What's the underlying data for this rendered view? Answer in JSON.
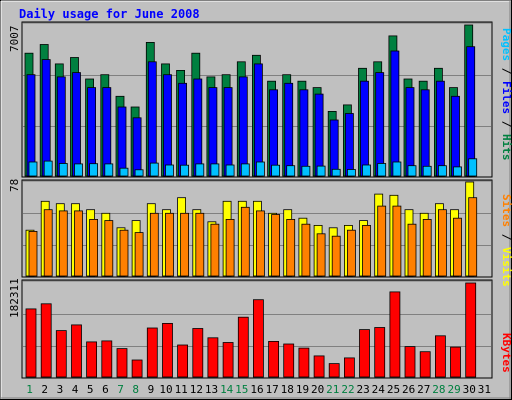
{
  "title": "Daily usage for June 2008",
  "colors": {
    "title": "#0000ff",
    "hits": "#008040",
    "files": "#0000ff",
    "pages": "#00c0ff",
    "visits": "#ffff00",
    "sites": "#ff8000",
    "kbytes": "#ff0000",
    "panel_bg": "#c0c0c0",
    "day_weekday": "#000000",
    "day_weekend": "#008040",
    "separator": "#000000"
  },
  "panels": {
    "top": {
      "max_label": "7007",
      "legend": [
        "Pages",
        "/",
        "Files",
        "/",
        "Hits"
      ]
    },
    "middle": {
      "max_label": "78",
      "legend": [
        "Sites",
        "/",
        "Visits"
      ]
    },
    "bottom": {
      "max_label": "182311",
      "legend": [
        "KBytes"
      ]
    }
  },
  "chart_data": [
    {
      "type": "bar",
      "title": "Daily usage for June 2008",
      "ylabel": "Pages / Files / Hits",
      "categories": [
        "1",
        "2",
        "3",
        "4",
        "5",
        "6",
        "7",
        "8",
        "9",
        "10",
        "11",
        "12",
        "13",
        "14",
        "15",
        "16",
        "17",
        "18",
        "19",
        "20",
        "21",
        "22",
        "23",
        "24",
        "25",
        "26",
        "27",
        "28",
        "29",
        "30",
        "31"
      ],
      "weekend_days": [
        "1",
        "7",
        "8",
        "14",
        "15",
        "21",
        "22",
        "28",
        "29"
      ],
      "ylim": [
        0,
        7007
      ],
      "series": [
        {
          "name": "Hits",
          "values": [
            5700,
            6100,
            5200,
            5500,
            4500,
            4700,
            3700,
            3200,
            6200,
            5200,
            4900,
            5700,
            4600,
            4700,
            5300,
            5600,
            4400,
            4700,
            4400,
            4100,
            3000,
            3300,
            5000,
            5300,
            6500,
            4500,
            4400,
            5000,
            4100,
            7007,
            0
          ]
        },
        {
          "name": "Files",
          "values": [
            4700,
            5400,
            4600,
            4800,
            4100,
            4100,
            3200,
            2700,
            5300,
            4700,
            4300,
            4500,
            4100,
            4100,
            4600,
            5200,
            4000,
            4300,
            4000,
            3800,
            2600,
            2900,
            4400,
            4800,
            5800,
            4100,
            4000,
            4400,
            3700,
            6000,
            0
          ]
        },
        {
          "name": "Pages",
          "values": [
            650,
            690,
            580,
            560,
            570,
            560,
            360,
            290,
            600,
            510,
            500,
            560,
            560,
            510,
            560,
            650,
            500,
            480,
            450,
            460,
            310,
            300,
            510,
            580,
            650,
            480,
            450,
            480,
            420,
            800,
            0
          ]
        }
      ]
    },
    {
      "type": "bar",
      "ylabel": "Sites / Visits",
      "categories": [
        "1",
        "2",
        "3",
        "4",
        "5",
        "6",
        "7",
        "8",
        "9",
        "10",
        "11",
        "12",
        "13",
        "14",
        "15",
        "16",
        "17",
        "18",
        "19",
        "20",
        "21",
        "22",
        "23",
        "24",
        "25",
        "26",
        "27",
        "28",
        "29",
        "30",
        "31"
      ],
      "ylim": [
        0,
        78
      ],
      "series": [
        {
          "name": "Visits",
          "values": [
            38,
            62,
            60,
            60,
            55,
            52,
            40,
            46,
            60,
            55,
            65,
            55,
            45,
            62,
            62,
            62,
            52,
            55,
            48,
            42,
            40,
            42,
            46,
            68,
            67,
            55,
            52,
            60,
            55,
            78,
            0
          ]
        },
        {
          "name": "Sites",
          "values": [
            37,
            55,
            54,
            54,
            47,
            46,
            38,
            36,
            52,
            52,
            52,
            52,
            43,
            47,
            57,
            54,
            51,
            47,
            43,
            35,
            33,
            38,
            42,
            58,
            58,
            43,
            47,
            55,
            48,
            65,
            0
          ]
        }
      ]
    },
    {
      "type": "bar",
      "ylabel": "KBytes",
      "categories": [
        "1",
        "2",
        "3",
        "4",
        "5",
        "6",
        "7",
        "8",
        "9",
        "10",
        "11",
        "12",
        "13",
        "14",
        "15",
        "16",
        "17",
        "18",
        "19",
        "20",
        "21",
        "22",
        "23",
        "24",
        "25",
        "26",
        "27",
        "28",
        "29",
        "30",
        "31"
      ],
      "ylim": [
        0,
        182311
      ],
      "series": [
        {
          "name": "KBytes",
          "values": [
            132000,
            142000,
            90000,
            101000,
            68000,
            70000,
            55000,
            33000,
            95000,
            104000,
            62000,
            94000,
            76000,
            67000,
            116000,
            150000,
            69000,
            64000,
            56000,
            41000,
            26000,
            37000,
            92000,
            96000,
            165000,
            59000,
            49000,
            80000,
            58000,
            182311,
            0
          ]
        }
      ]
    }
  ]
}
